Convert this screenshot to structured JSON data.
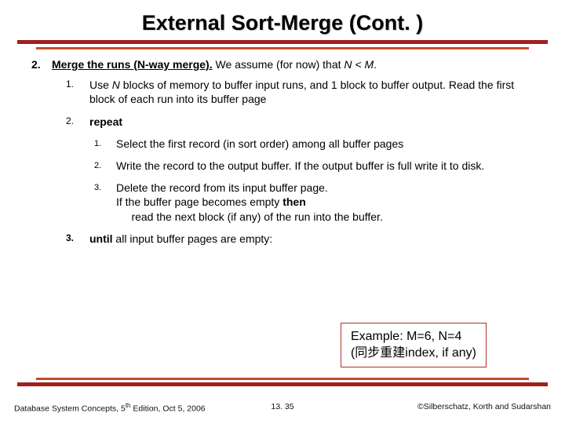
{
  "title": "External Sort-Merge (Cont. )",
  "item2_num": "2.",
  "item2_pre_bold_u": "Merge the runs (N-way merge).",
  "item2_rest": " We assume (for now) that ",
  "item2_italic": "N < M",
  "item2_period": ".",
  "sub1_num": "1.",
  "sub1_a": "Use ",
  "sub1_i": "N",
  "sub1_b": " blocks of memory to buffer input runs, and 1 block to buffer output. Read the first block of each run into its buffer page",
  "sub2_num": "2.",
  "sub2_txt": "repeat",
  "step1_num": "1.",
  "step1_txt": "Select the first record (in sort order) among all buffer pages",
  "step2_num": "2.",
  "step2_txt": "Write the record to the output buffer.  If the output buffer is full write it to disk.",
  "step3_num": "3.",
  "step3_l1": "Delete the record from its input buffer page.",
  "step3_l2a": "If the buffer page becomes empty ",
  "step3_l2b": "then",
  "step3_l3": "     read the next block (if any) of the run into the buffer.",
  "sub3_num": "3.",
  "sub3_bold": "until",
  "sub3_rest": " all input buffer pages are empty:",
  "example_l1": "Example: M=6,  N=4",
  "example_l2": "(同步重建index, if any)",
  "footer_left_a": "Database System Concepts, 5",
  "footer_left_sup": "th",
  "footer_left_b": " Edition, Oct 5, 2006",
  "footer_center": "13. 35",
  "footer_right": "©Silberschatz, Korth and Sudarshan",
  "colors": {
    "rule_dark": "#a02020",
    "rule_light": "#c24d2c",
    "box_border": "#aa3322",
    "text": "#000000",
    "bg": "#ffffff"
  }
}
